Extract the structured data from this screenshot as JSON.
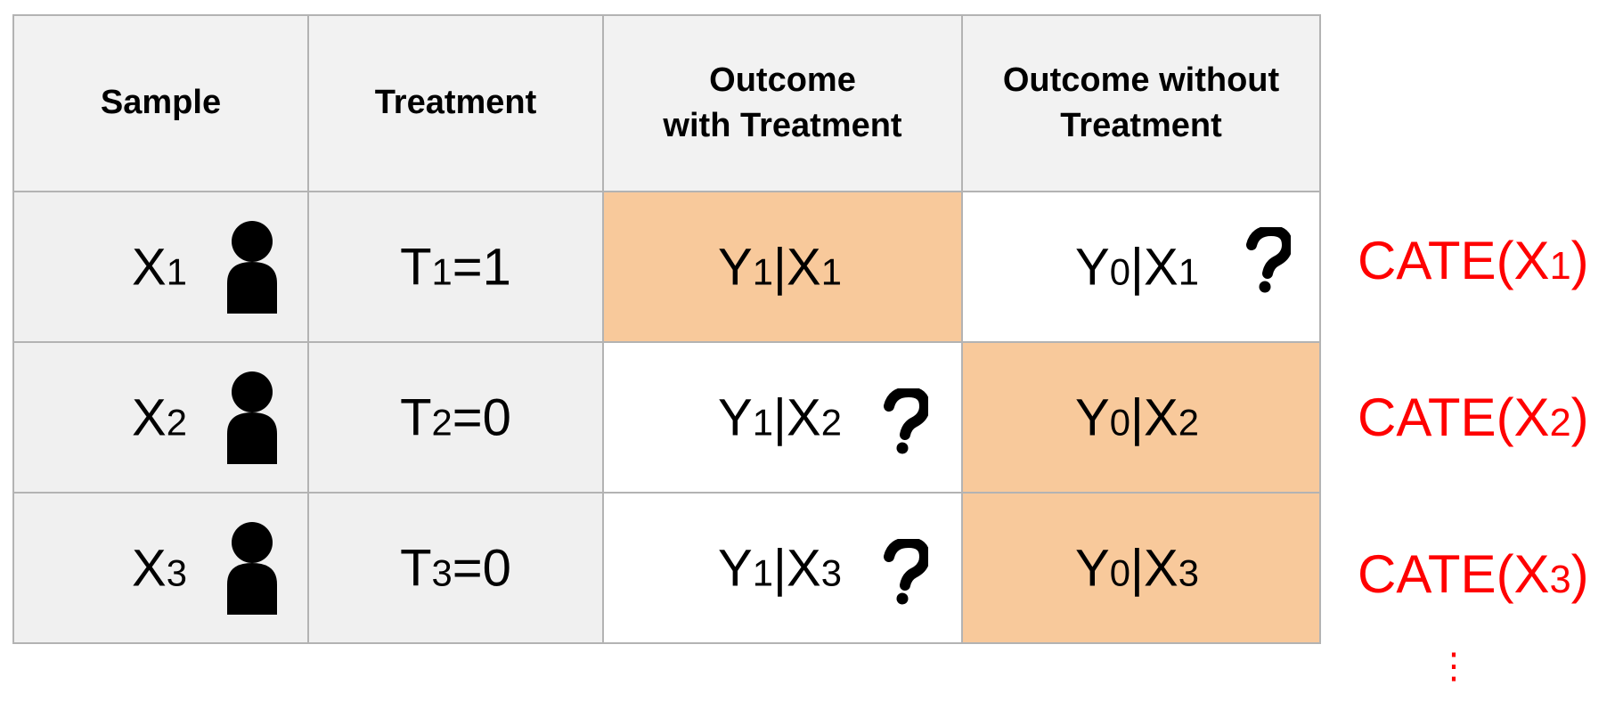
{
  "headers": {
    "sample": "Sample",
    "treatment": "Treatment",
    "with_line1": "Outcome",
    "with_line2": "with Treatment",
    "without_line1": "Outcome without",
    "without_line2": "Treatment"
  },
  "rows": [
    {
      "sample": {
        "base": "X",
        "sub": "1"
      },
      "treatment": {
        "base": "T",
        "sub": "1",
        "rest": "=1"
      },
      "with": {
        "a": "Y",
        "a_sub": "1",
        "b": "|X",
        "b_sub": "1",
        "unknown": false
      },
      "without": {
        "a": "Y",
        "a_sub": "0",
        "b": "|X",
        "b_sub": "1",
        "unknown": true
      },
      "cate": {
        "pre": "CATE(X",
        "sub": "1",
        "post": ")"
      }
    },
    {
      "sample": {
        "base": "X",
        "sub": "2"
      },
      "treatment": {
        "base": "T",
        "sub": "2",
        "rest": "=0"
      },
      "with": {
        "a": "Y",
        "a_sub": "1",
        "b": "|X",
        "b_sub": "2",
        "unknown": true
      },
      "without": {
        "a": "Y",
        "a_sub": "0",
        "b": "|X",
        "b_sub": "2",
        "unknown": false
      },
      "cate": {
        "pre": "CATE(X",
        "sub": "2",
        "post": ")"
      }
    },
    {
      "sample": {
        "base": "X",
        "sub": "3"
      },
      "treatment": {
        "base": "T",
        "sub": "3",
        "rest": "=0"
      },
      "with": {
        "a": "Y",
        "a_sub": "1",
        "b": "|X",
        "b_sub": "3",
        "unknown": true
      },
      "without": {
        "a": "Y",
        "a_sub": "0",
        "b": "|X",
        "b_sub": "3",
        "unknown": false
      },
      "cate": {
        "pre": "CATE(X",
        "sub": "3",
        "post": ")"
      }
    }
  ],
  "continuation": "⋮",
  "colors": {
    "observed_fill": "#f8c99b",
    "header_fill": "#f2f2f2",
    "cate_text": "#ff0000"
  },
  "icons": {
    "sample": "person-icon",
    "unknown": "question-mark-icon"
  }
}
